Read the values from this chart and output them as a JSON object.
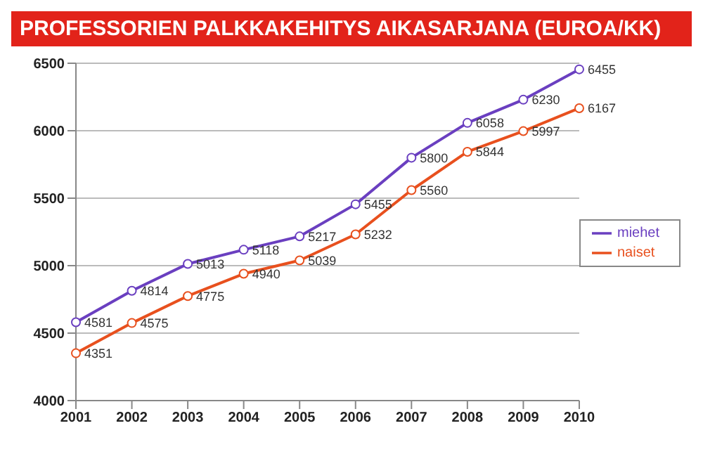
{
  "chart_data": {
    "type": "line",
    "title": "PROFESSORIEN PALKKAKEHITYS AIKASARJANA (EUROA/KK)",
    "categories": [
      "2001",
      "2002",
      "2003",
      "2004",
      "2005",
      "2006",
      "2007",
      "2008",
      "2009",
      "2010"
    ],
    "series": [
      {
        "name": "naiset",
        "color": "#e8501e",
        "values": [
          4351,
          4575,
          4775,
          4940,
          5039,
          5232,
          5560,
          5844,
          5997,
          6167
        ]
      },
      {
        "name": "miehet",
        "color": "#6a3fc0",
        "values": [
          4581,
          4814,
          5013,
          5118,
          5217,
          5455,
          5800,
          6058,
          6230,
          6455
        ]
      }
    ],
    "ylim": [
      4000,
      6500
    ],
    "yticks": [
      4000,
      4500,
      5000,
      5500,
      6000,
      6500
    ],
    "grid": "y",
    "legend": "right",
    "marker": "circle",
    "line_style": "solid",
    "data_labels": true
  }
}
